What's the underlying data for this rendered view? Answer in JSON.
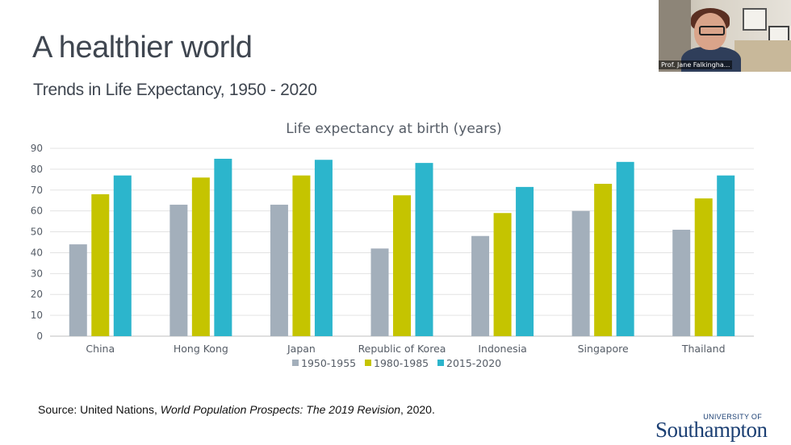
{
  "slide": {
    "title": "A healthier world",
    "subtitle": "Trends in Life Expectancy, 1950 - 2020",
    "source_prefix": "Source: United Nations, ",
    "source_italic": "World Population Prospects: The 2019 Revision",
    "source_suffix": ", 2020."
  },
  "video": {
    "caption": "Prof. Jane Falkingha..."
  },
  "logo": {
    "top": "UNIVERSITY OF",
    "main": "Southampton"
  },
  "chart_data": {
    "type": "bar",
    "title": "Life expectancy at birth (years)",
    "xlabel": "",
    "ylabel": "",
    "ylim": [
      0,
      90
    ],
    "yticks": [
      0,
      10,
      20,
      30,
      40,
      50,
      60,
      70,
      80,
      90
    ],
    "grid": true,
    "legend_position": "bottom",
    "categories": [
      "China",
      "Hong Kong",
      "Japan",
      "Republic of Korea",
      "Indonesia",
      "Singapore",
      "Thailand"
    ],
    "series": [
      {
        "name": "1950-1955",
        "color": "#a3afbb",
        "values": [
          44,
          63,
          63,
          42,
          48,
          60,
          51
        ]
      },
      {
        "name": "1980-1985",
        "color": "#c5c400",
        "values": [
          68,
          76,
          77,
          67.5,
          59,
          73,
          66
        ]
      },
      {
        "name": "2015-2020",
        "color": "#2cb5cc",
        "values": [
          77,
          85,
          84.5,
          83,
          71.5,
          83.5,
          77
        ]
      }
    ]
  }
}
